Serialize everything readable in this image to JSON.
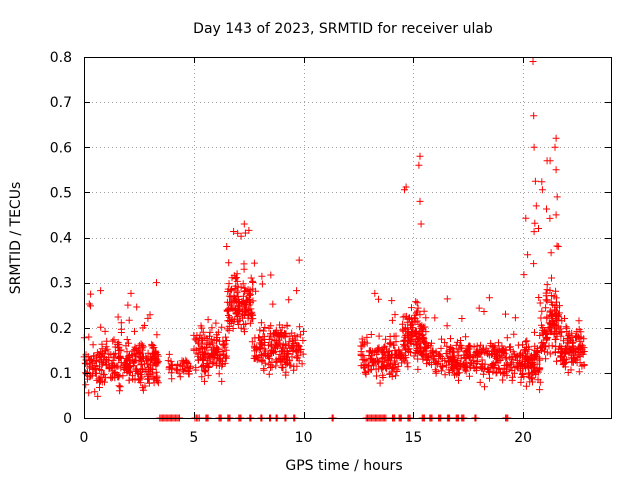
{
  "chart_data": {
    "type": "scatter",
    "title": "Day 143 of 2023, SRMTID for receiver ulab",
    "xlabel": "GPS time / hours",
    "ylabel": "SRMTID / TECUs",
    "xlim": [
      0,
      24
    ],
    "ylim": [
      0,
      0.8
    ],
    "xticks": [
      0,
      5,
      10,
      15,
      20
    ],
    "yticks": [
      0,
      0.1,
      0.2,
      0.3,
      0.4,
      0.5,
      0.6,
      0.7,
      0.8
    ],
    "xtick_labels": [
      "0",
      "5",
      "10",
      "15",
      "20"
    ],
    "ytick_labels": [
      "0",
      "0.1",
      "0.2",
      "0.3",
      "0.4",
      "0.5",
      "0.6",
      "0.7",
      "0.8"
    ],
    "grid": true,
    "marker": "+",
    "color": "#ff0000",
    "clusters": [
      {
        "x0": 0.0,
        "x1": 3.4,
        "base": 0.12,
        "spread": 0.05,
        "spike_to": 0.3,
        "count": 320
      },
      {
        "x0": 3.8,
        "x1": 5.0,
        "base": 0.11,
        "spread": 0.02,
        "spike_to": 0.15,
        "count": 40
      },
      {
        "x0": 5.0,
        "x1": 6.5,
        "base": 0.14,
        "spread": 0.05,
        "spike_to": 0.22,
        "count": 140
      },
      {
        "x0": 6.5,
        "x1": 7.7,
        "base": 0.25,
        "spread": 0.06,
        "spike_to": 0.43,
        "count": 150
      },
      {
        "x0": 7.7,
        "x1": 10.0,
        "base": 0.15,
        "spread": 0.05,
        "spike_to": 0.35,
        "count": 200
      },
      {
        "x0": 12.6,
        "x1": 14.5,
        "base": 0.13,
        "spread": 0.04,
        "spike_to": 0.28,
        "count": 150
      },
      {
        "x0": 14.5,
        "x1": 15.6,
        "base": 0.18,
        "spread": 0.06,
        "spike_to": 0.58,
        "count": 150
      },
      {
        "x0": 15.6,
        "x1": 20.0,
        "base": 0.13,
        "spread": 0.04,
        "spike_to": 0.27,
        "count": 330
      },
      {
        "x0": 20.0,
        "x1": 20.8,
        "base": 0.12,
        "spread": 0.05,
        "spike_to": 0.79,
        "count": 90
      },
      {
        "x0": 20.8,
        "x1": 21.7,
        "base": 0.2,
        "spread": 0.07,
        "spike_to": 0.62,
        "count": 120
      },
      {
        "x0": 21.7,
        "x1": 22.8,
        "base": 0.15,
        "spread": 0.05,
        "spike_to": 0.25,
        "count": 120
      }
    ],
    "spikes": [
      {
        "x": 20.45,
        "y": 0.79
      },
      {
        "x": 20.48,
        "y": 0.67
      },
      {
        "x": 20.5,
        "y": 0.6
      },
      {
        "x": 21.5,
        "y": 0.62
      },
      {
        "x": 21.45,
        "y": 0.6
      },
      {
        "x": 21.5,
        "y": 0.55
      },
      {
        "x": 21.55,
        "y": 0.49
      },
      {
        "x": 21.5,
        "y": 0.45
      },
      {
        "x": 15.3,
        "y": 0.58
      },
      {
        "x": 15.25,
        "y": 0.56
      },
      {
        "x": 15.3,
        "y": 0.48
      },
      {
        "x": 15.35,
        "y": 0.43
      },
      {
        "x": 7.3,
        "y": 0.43
      },
      {
        "x": 7.35,
        "y": 0.41
      },
      {
        "x": 6.5,
        "y": 0.38
      },
      {
        "x": 9.8,
        "y": 0.35
      },
      {
        "x": 3.3,
        "y": 0.3
      },
      {
        "x": 20.6,
        "y": 0.47
      },
      {
        "x": 20.7,
        "y": 0.42
      },
      {
        "x": 21.6,
        "y": 0.38
      }
    ],
    "zero_segments": [
      [
        3.45,
        4.35
      ],
      [
        5.05,
        5.25
      ],
      [
        5.55,
        5.65
      ],
      [
        6.15,
        6.25
      ],
      [
        6.55,
        6.65
      ],
      [
        7.05,
        7.15
      ],
      [
        7.55,
        7.6
      ],
      [
        8.05,
        8.1
      ],
      [
        8.45,
        8.5
      ],
      [
        8.75,
        8.8
      ],
      [
        9.15,
        9.2
      ],
      [
        9.55,
        9.6
      ],
      [
        11.3,
        11.35
      ],
      [
        12.85,
        13.75
      ],
      [
        14.05,
        14.15
      ],
      [
        14.35,
        14.45
      ],
      [
        14.75,
        14.85
      ],
      [
        15.4,
        15.5
      ],
      [
        15.75,
        15.85
      ],
      [
        16.15,
        16.25
      ],
      [
        16.55,
        16.65
      ],
      [
        16.95,
        17.05
      ],
      [
        17.2,
        17.3
      ],
      [
        17.8,
        17.85
      ],
      [
        19.2,
        19.3
      ]
    ]
  }
}
